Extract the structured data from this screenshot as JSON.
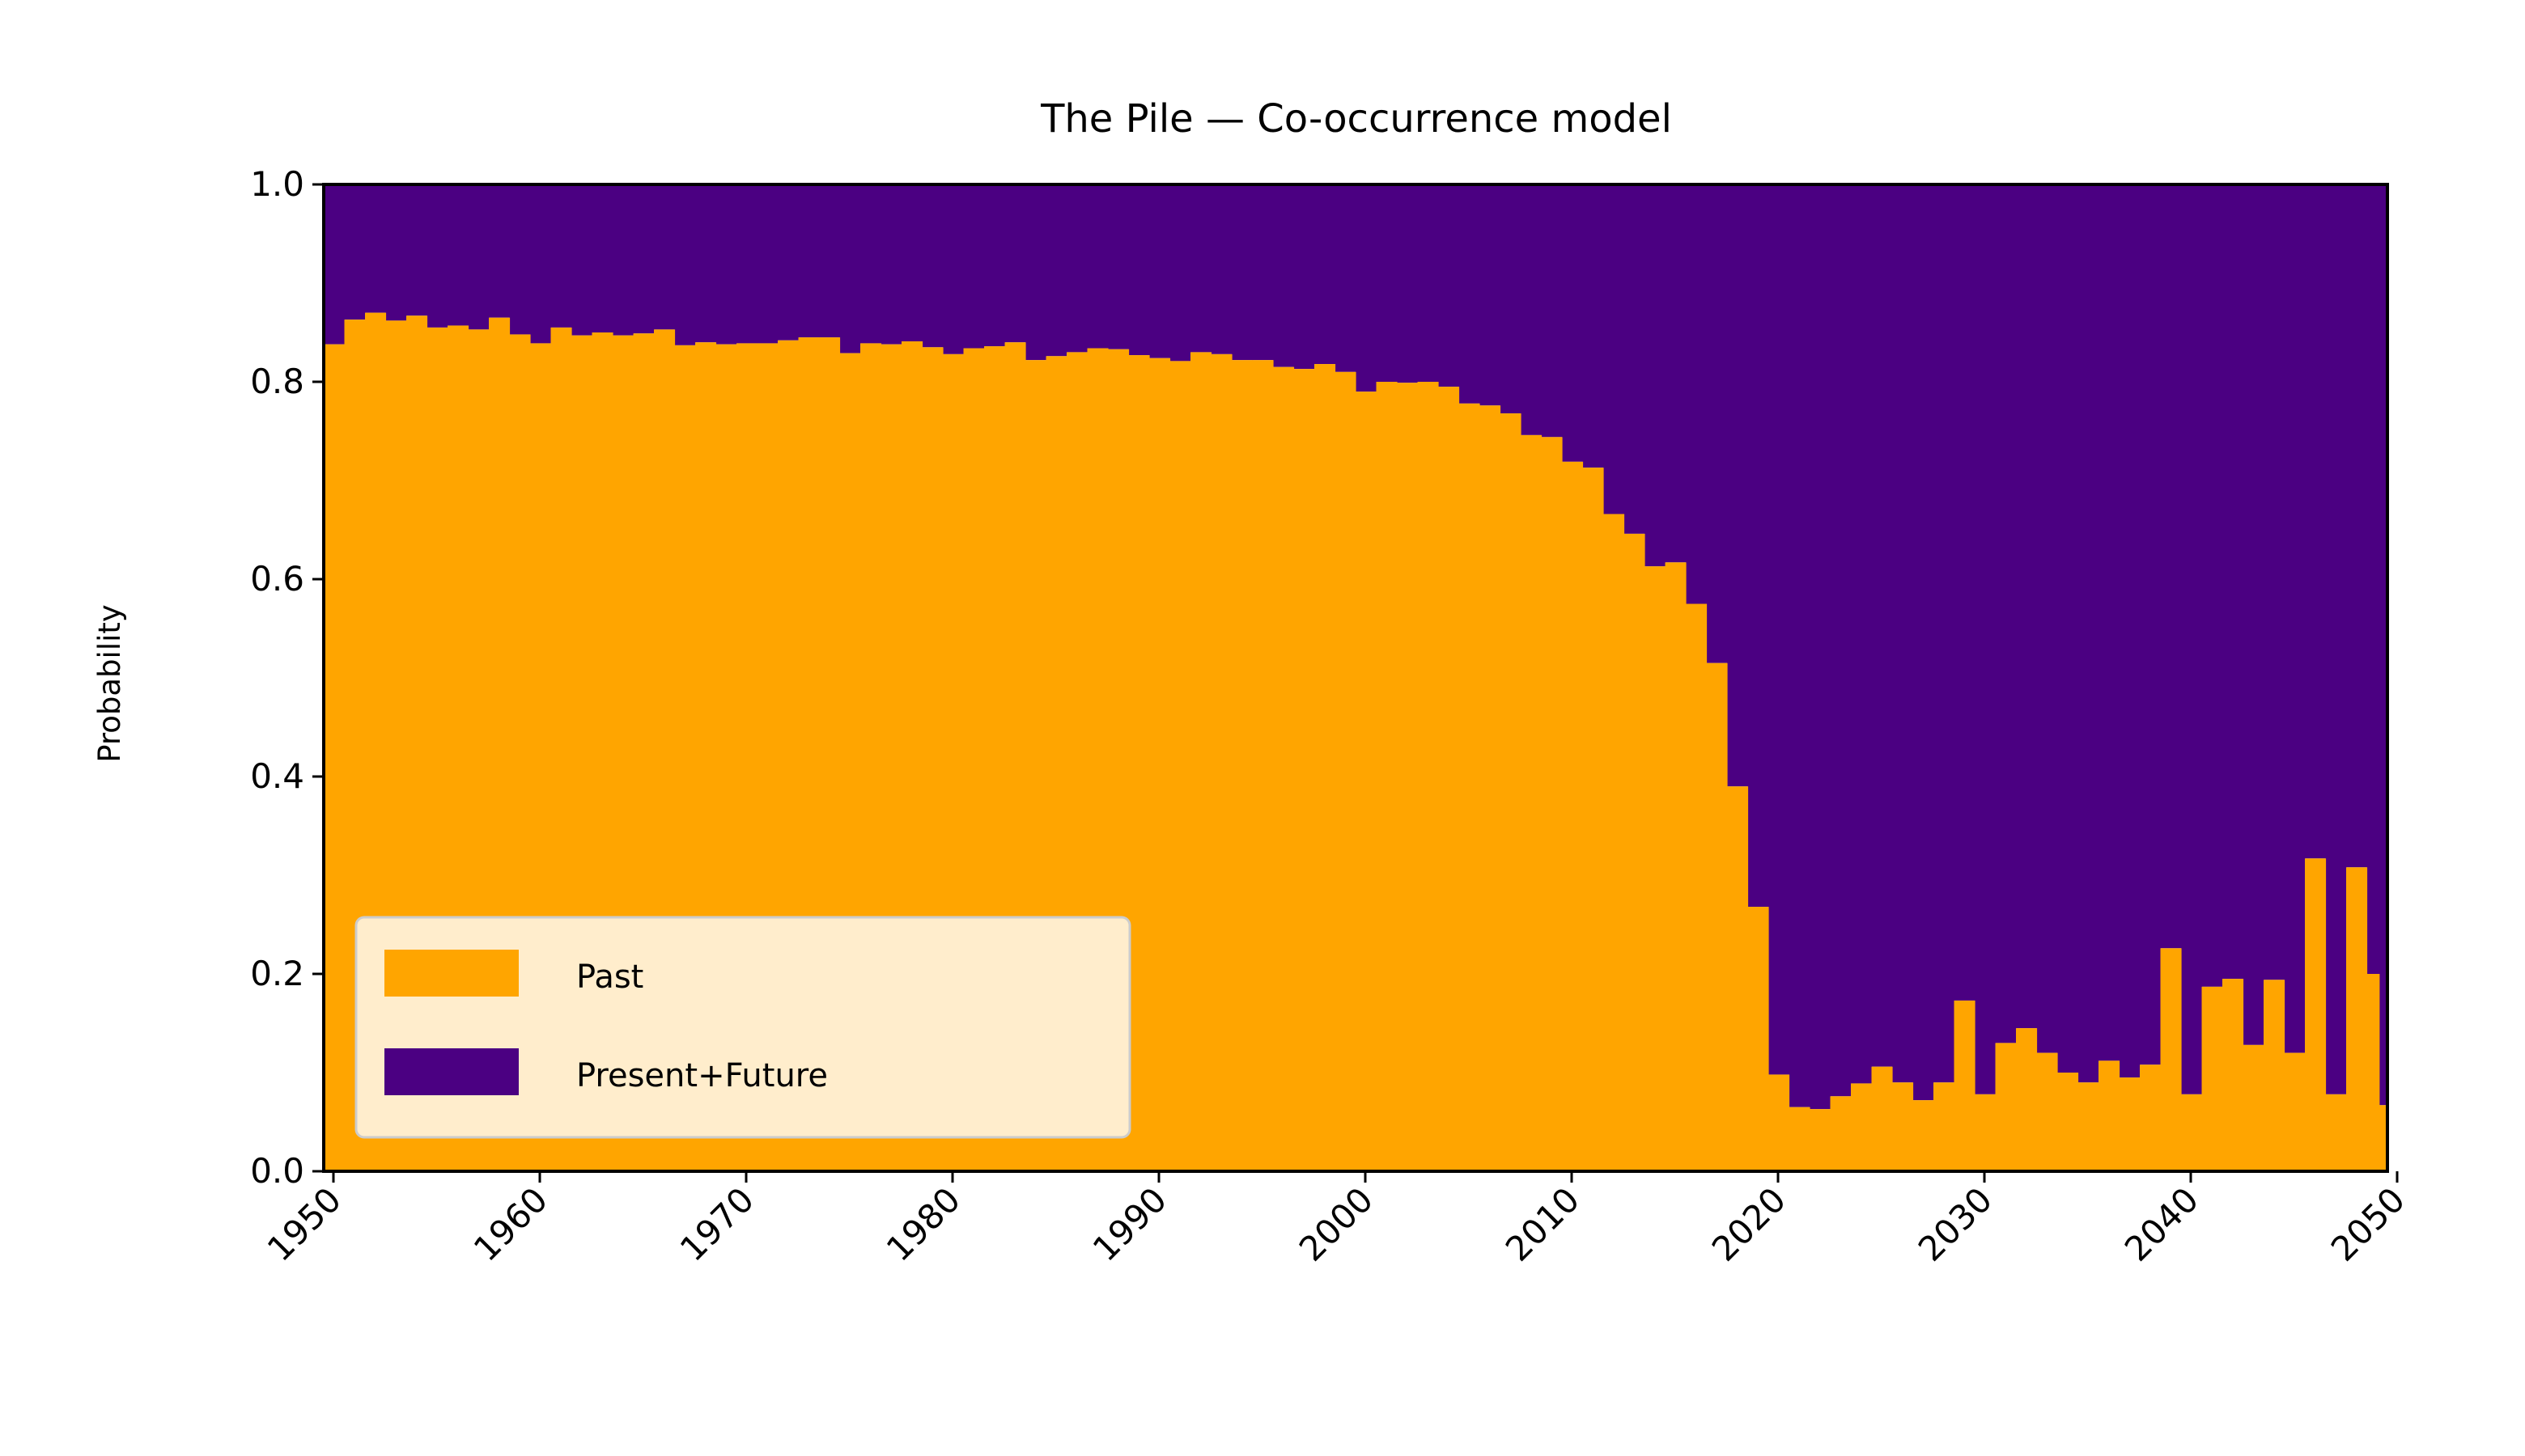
{
  "chart_data": {
    "type": "area",
    "title": "The Pile — Co-occurrence model",
    "xlabel": "",
    "ylabel": "Probability",
    "xlim": [
      1950,
      2050
    ],
    "ylim": [
      0,
      1
    ],
    "x_ticks": [
      "1950",
      "1960",
      "1970",
      "1980",
      "1990",
      "2000",
      "2010",
      "2020",
      "2030",
      "2040",
      "2050"
    ],
    "y_ticks": [
      "0.0",
      "0.2",
      "0.4",
      "0.6",
      "0.8",
      "1.0"
    ],
    "stacked": true,
    "step": true,
    "grid": false,
    "legend_position": "lower-left",
    "x": [
      1950,
      1951,
      1952,
      1953,
      1954,
      1955,
      1956,
      1957,
      1958,
      1959,
      1960,
      1961,
      1962,
      1963,
      1964,
      1965,
      1966,
      1967,
      1968,
      1969,
      1970,
      1971,
      1972,
      1973,
      1974,
      1975,
      1976,
      1977,
      1978,
      1979,
      1980,
      1981,
      1982,
      1983,
      1984,
      1985,
      1986,
      1987,
      1988,
      1989,
      1990,
      1991,
      1992,
      1993,
      1994,
      1995,
      1996,
      1997,
      1998,
      1999,
      2000,
      2001,
      2002,
      2003,
      2004,
      2005,
      2006,
      2007,
      2008,
      2009,
      2010,
      2011,
      2012,
      2013,
      2014,
      2015,
      2016,
      2017,
      2018,
      2019,
      2020,
      2021,
      2022,
      2023,
      2024,
      2025,
      2026,
      2027,
      2028,
      2029,
      2030,
      2031,
      2032,
      2033,
      2034,
      2035,
      2036,
      2037,
      2038,
      2039,
      2040,
      2041,
      2042,
      2043,
      2044,
      2045,
      2046,
      2047,
      2048,
      2049
    ],
    "series": [
      {
        "name": "Past",
        "color": "#ffa500",
        "values": [
          0.838,
          0.863,
          0.87,
          0.862,
          0.867,
          0.855,
          0.857,
          0.853,
          0.865,
          0.848,
          0.839,
          0.855,
          0.847,
          0.85,
          0.847,
          0.849,
          0.853,
          0.837,
          0.84,
          0.838,
          0.839,
          0.839,
          0.842,
          0.845,
          0.845,
          0.829,
          0.839,
          0.838,
          0.841,
          0.835,
          0.828,
          0.834,
          0.836,
          0.84,
          0.822,
          0.826,
          0.83,
          0.834,
          0.833,
          0.827,
          0.824,
          0.821,
          0.83,
          0.828,
          0.822,
          0.822,
          0.815,
          0.813,
          0.818,
          0.81,
          0.79,
          0.8,
          0.799,
          0.8,
          0.795,
          0.778,
          0.776,
          0.768,
          0.746,
          0.744,
          0.719,
          0.713,
          0.666,
          0.646,
          0.613,
          0.617,
          0.575,
          0.515,
          0.39,
          0.268,
          0.098,
          0.065,
          0.063,
          0.076,
          0.089,
          0.106,
          0.09,
          0.072,
          0.09,
          0.173,
          0.078,
          0.13,
          0.145,
          0.12,
          0.1,
          0.09,
          0.112,
          0.095,
          0.108,
          0.226,
          0.078,
          0.187,
          0.195,
          0.128,
          0.194,
          0.12,
          0.317,
          0.078,
          0.308,
          0.2
        ],
        "extra_value": 0.067
      },
      {
        "name": "Present+Future",
        "color": "#4b0082",
        "fill": "remainder to 1.0"
      }
    ]
  }
}
